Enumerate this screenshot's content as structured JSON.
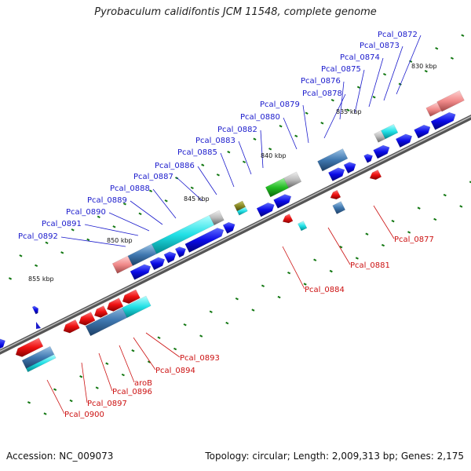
{
  "title": "Pyrobaculum calidifontis JCM 11548, complete genome",
  "footer": {
    "accession": "Accession: NC_009073",
    "summary": "Topology: circular; Length: 2,009,313 bp; Genes: 2,175"
  },
  "colors": {
    "label_top": "#1a1acc",
    "label_bottom": "#cc1111",
    "backbone": "#777777",
    "cds_blue": "#0a0ae6",
    "cds_red": "#ee1111",
    "tick_green": "#117711"
  },
  "scale_ticks": [
    {
      "label": "830 kbp"
    },
    {
      "label": "835 kbp"
    },
    {
      "label": "840 kbp"
    },
    {
      "label": "845 kbp"
    },
    {
      "label": "850 kbp"
    },
    {
      "label": "855 kbp"
    }
  ],
  "gene_labels_forward": [
    "Pcal_0872",
    "Pcal_0873",
    "Pcal_0874",
    "Pcal_0875",
    "Pcal_0876",
    "Pcal_0878",
    "Pcal_0879",
    "Pcal_0880",
    "Pcal_0882",
    "Pcal_0883",
    "Pcal_0885",
    "Pcal_0886",
    "Pcal_0887",
    "Pcal_0888",
    "Pcal_0889",
    "Pcal_0890",
    "Pcal_0891",
    "Pcal_0892"
  ],
  "gene_labels_reverse": [
    "Pcal_0877",
    "Pcal_0881",
    "Pcal_0884",
    "Pcal_0893",
    "Pcal_0894",
    "aroB",
    "Pcal_0896",
    "Pcal_0897",
    "Pcal_0900"
  ]
}
